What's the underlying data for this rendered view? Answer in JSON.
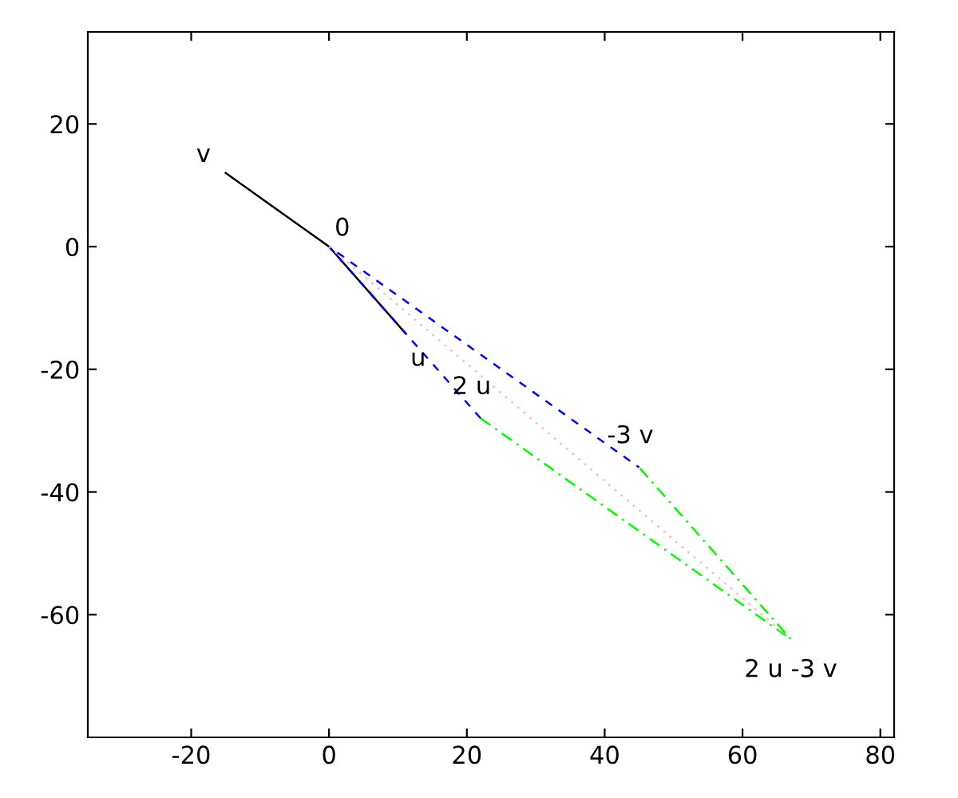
{
  "chart_data": {
    "type": "line",
    "series": [
      {
        "color": "#000000",
        "x": [
          -15,
          0,
          11
        ],
        "values": [
          12,
          0,
          -14
        ],
        "line_style": "solid"
      },
      {
        "color": "#0000ff",
        "x": [
          22,
          0,
          45
        ],
        "values": [
          -28,
          0,
          -36
        ],
        "line_style": "dashed"
      },
      {
        "color": "#00ff00",
        "x": [
          22,
          67,
          45
        ],
        "values": [
          -28,
          -64,
          -36
        ],
        "line_style": "dashdot"
      },
      {
        "color": "#ffb6c1",
        "x": [
          0,
          67
        ],
        "values": [
          0,
          -64
        ],
        "line_style": "dotted"
      }
    ],
    "annotations": [
      {
        "text": "v",
        "x": -15,
        "y": 12
      },
      {
        "text": "0",
        "x": 0,
        "y": 0
      },
      {
        "text": "u",
        "x": 11,
        "y": -14
      },
      {
        "text": "2 u",
        "x": 22,
        "y": -28
      },
      {
        "text": "-3 v",
        "x": 45,
        "y": -36
      },
      {
        "text": "2 u -3 v",
        "x": 67,
        "y": -64
      }
    ],
    "xlim": [
      -35,
      82
    ],
    "ylim": [
      -80,
      35
    ],
    "xticks": [
      -20,
      0,
      20,
      40,
      60,
      80
    ],
    "yticks": [
      -60,
      -40,
      -20,
      0,
      20
    ],
    "grid": false,
    "legend": false,
    "marker": "none"
  }
}
